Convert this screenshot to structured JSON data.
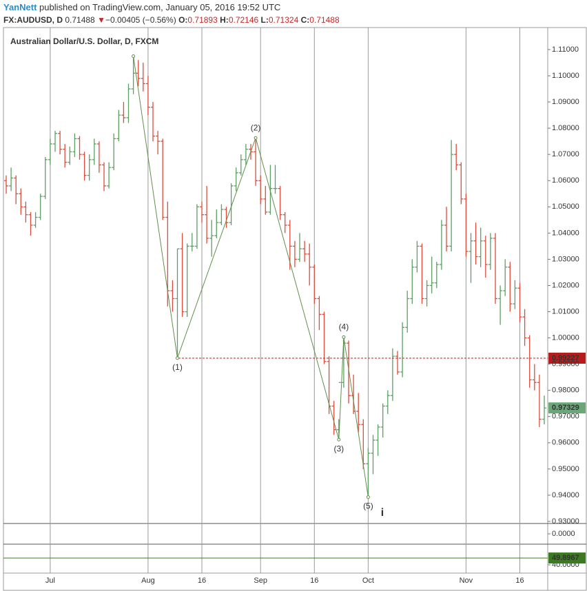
{
  "header": {
    "author": "YanNett",
    "published": "published on TradingView.com, January 05, 2016 19:52 UTC",
    "symbol": "FX:AUDUSD, D",
    "price": "0.71488",
    "direction": "▼",
    "change": "−0.00405 (−0.56%)",
    "open_label": "O:",
    "open": "0.71893",
    "high_label": "H:",
    "high": "0.72146",
    "low_label": "L:",
    "low": "0.71324",
    "close_label": "C:",
    "close": "0.71488"
  },
  "chart_data": {
    "type": "ohlc",
    "up_color": "#5b9f63",
    "down_color": "#de4a3a",
    "grid": "x",
    "ylim": [
      0.9292,
      1.1184
    ],
    "yticks": [
      {
        "value": 0.93,
        "label": "0.93000"
      },
      {
        "value": 0.94,
        "label": "0.94000"
      },
      {
        "value": 0.95,
        "label": "0.95000"
      },
      {
        "value": 0.96,
        "label": "0.96000"
      },
      {
        "value": 0.97,
        "label": "0.97000"
      },
      {
        "value": 0.98,
        "label": "0.98000"
      },
      {
        "value": 0.99,
        "label": "0.99000"
      },
      {
        "value": 1.0,
        "label": "1.00000"
      },
      {
        "value": 1.01,
        "label": "1.01000"
      },
      {
        "value": 1.02,
        "label": "1.02000"
      },
      {
        "value": 1.03,
        "label": "1.03000"
      },
      {
        "value": 1.04,
        "label": "1.04000"
      },
      {
        "value": 1.05,
        "label": "1.05000"
      },
      {
        "value": 1.06,
        "label": "1.06000"
      },
      {
        "value": 1.07,
        "label": "1.07000"
      },
      {
        "value": 1.08,
        "label": "1.08000"
      },
      {
        "value": 1.09,
        "label": "1.09000"
      },
      {
        "value": 1.1,
        "label": "1.10000"
      },
      {
        "value": 1.11,
        "label": "1.11000"
      }
    ],
    "categories": [
      null,
      null,
      null,
      null,
      null,
      null,
      null,
      null,
      null,
      "Jul",
      null,
      null,
      null,
      null,
      null,
      null,
      null,
      null,
      null,
      null,
      null,
      null,
      null,
      null,
      null,
      null,
      null,
      null,
      null,
      "Aug",
      null,
      null,
      null,
      null,
      null,
      null,
      null,
      null,
      null,
      null,
      "16",
      null,
      null,
      null,
      null,
      null,
      null,
      null,
      null,
      null,
      null,
      null,
      "Sep",
      null,
      null,
      null,
      null,
      null,
      null,
      null,
      null,
      null,
      null,
      "16",
      null,
      null,
      null,
      null,
      null,
      null,
      null,
      null,
      null,
      null,
      "Oct",
      null,
      null,
      null,
      null,
      null,
      null,
      null,
      null,
      null,
      null,
      null,
      null,
      null,
      null,
      null,
      null,
      null,
      null,
      null,
      "Nov",
      null,
      null,
      null,
      null,
      null,
      null,
      null,
      null,
      null,
      null,
      "16",
      null,
      null,
      null,
      null,
      null
    ],
    "series": [
      {
        "name": "Australian Dollar/U.S. Dollar, D, FXCM",
        "values": [
          [
            1.06,
            1.062,
            1.055,
            1.058
          ],
          [
            1.058,
            1.065,
            1.056,
            1.061
          ],
          [
            1.061,
            1.062,
            1.051,
            1.055
          ],
          [
            1.055,
            1.057,
            1.047,
            1.05
          ],
          [
            1.05,
            1.052,
            1.044,
            1.047
          ],
          [
            1.047,
            1.048,
            1.039,
            1.043
          ],
          [
            1.043,
            1.048,
            1.042,
            1.046
          ],
          [
            1.046,
            1.055,
            1.045,
            1.054
          ],
          [
            1.054,
            1.069,
            1.053,
            1.068
          ],
          [
            1.068,
            1.076,
            1.066,
            1.074
          ],
          [
            1.074,
            1.079,
            1.071,
            1.078
          ],
          [
            1.078,
            1.079,
            1.07,
            1.072
          ],
          [
            1.072,
            1.074,
            1.065,
            1.067
          ],
          [
            1.067,
            1.073,
            1.066,
            1.071
          ],
          [
            1.071,
            1.078,
            1.069,
            1.076
          ],
          [
            1.076,
            1.077,
            1.068,
            1.07
          ],
          [
            1.07,
            1.071,
            1.06,
            1.062
          ],
          [
            1.062,
            1.07,
            1.06,
            1.068
          ],
          [
            1.068,
            1.076,
            1.066,
            1.074
          ],
          [
            1.074,
            1.075,
            1.063,
            1.066
          ],
          [
            1.066,
            1.067,
            1.056,
            1.058
          ],
          [
            1.058,
            1.067,
            1.057,
            1.065
          ],
          [
            1.065,
            1.078,
            1.064,
            1.076
          ],
          [
            1.076,
            1.087,
            1.075,
            1.085
          ],
          [
            1.085,
            1.09,
            1.082,
            1.084
          ],
          [
            1.084,
            1.097,
            1.082,
            1.095
          ],
          [
            1.095,
            1.1075,
            1.093,
            1.101
          ],
          [
            1.101,
            1.106,
            1.096,
            1.099
          ],
          [
            1.099,
            1.105,
            1.094,
            1.097
          ],
          [
            1.097,
            1.1,
            1.085,
            1.088
          ],
          [
            1.088,
            1.09,
            1.075,
            1.077
          ],
          [
            1.077,
            1.079,
            1.07,
            1.075
          ],
          [
            1.075,
            1.076,
            1.045,
            1.046
          ],
          [
            1.046,
            1.052,
            1.012,
            1.018
          ],
          [
            1.018,
            1.022,
            1.01,
            1.015
          ],
          [
            1.015,
            1.034,
            0.9923,
            1.034
          ],
          [
            1.034,
            1.04,
            1.008,
            1.01
          ],
          [
            1.01,
            1.036,
            1.008,
            1.035
          ],
          [
            1.035,
            1.04,
            1.033,
            1.035
          ],
          [
            1.035,
            1.051,
            1.034,
            1.05
          ],
          [
            1.05,
            1.052,
            1.044,
            1.047
          ],
          [
            1.047,
            1.058,
            1.036,
            1.038
          ],
          [
            1.038,
            1.045,
            1.031,
            1.039
          ],
          [
            1.039,
            1.049,
            1.038,
            1.044
          ],
          [
            1.044,
            1.051,
            1.043,
            1.049
          ],
          [
            1.049,
            1.05,
            1.042,
            1.044
          ],
          [
            1.044,
            1.059,
            1.043,
            1.058
          ],
          [
            1.058,
            1.065,
            1.056,
            1.063
          ],
          [
            1.063,
            1.07,
            1.062,
            1.068
          ],
          [
            1.068,
            1.074,
            1.066,
            1.072
          ],
          [
            1.072,
            1.074,
            1.068,
            1.071
          ],
          [
            1.071,
            1.0763,
            1.058,
            1.06
          ],
          [
            1.06,
            1.062,
            1.051,
            1.053
          ],
          [
            1.053,
            1.058,
            1.047,
            1.048
          ],
          [
            1.048,
            1.066,
            1.047,
            1.057
          ],
          [
            1.057,
            1.066,
            1.055,
            1.057
          ],
          [
            1.057,
            1.058,
            1.045,
            1.047
          ],
          [
            1.047,
            1.048,
            1.04,
            1.043
          ],
          [
            1.043,
            1.045,
            1.026,
            1.035
          ],
          [
            1.035,
            1.037,
            1.027,
            1.03
          ],
          [
            1.03,
            1.04,
            1.029,
            1.034
          ],
          [
            1.034,
            1.037,
            1.029,
            1.032
          ],
          [
            1.032,
            1.036,
            1.02,
            1.027
          ],
          [
            1.027,
            1.028,
            1.013,
            1.015
          ],
          [
            1.015,
            1.016,
            1.003,
            1.009
          ],
          [
            1.009,
            1.01,
            0.99,
            0.991
          ],
          [
            0.991,
            0.993,
            0.971,
            0.974
          ],
          [
            0.974,
            0.976,
            0.963,
            0.965
          ],
          [
            0.965,
            0.969,
            0.9612,
            0.983
          ],
          [
            0.983,
            1.0003,
            0.981,
            0.998
          ],
          [
            0.998,
            0.999,
            0.975,
            0.978
          ],
          [
            0.978,
            0.986,
            0.971,
            0.972
          ],
          [
            0.972,
            0.979,
            0.964,
            0.967
          ],
          [
            0.967,
            0.969,
            0.95,
            0.952
          ],
          [
            0.952,
            0.958,
            0.9393,
            0.956
          ],
          [
            0.956,
            0.963,
            0.948,
            0.961
          ],
          [
            0.961,
            0.967,
            0.955,
            0.966
          ],
          [
            0.966,
            0.975,
            0.962,
            0.974
          ],
          [
            0.974,
            0.98,
            0.971,
            0.978
          ],
          [
            0.978,
            0.996,
            0.976,
            0.993
          ],
          [
            0.993,
            0.995,
            0.986,
            0.987
          ],
          [
            0.987,
            1.006,
            0.985,
            1.004
          ],
          [
            1.004,
            1.018,
            1.002,
            1.015
          ],
          [
            1.015,
            1.03,
            1.013,
            1.027
          ],
          [
            1.027,
            1.037,
            1.025,
            1.035
          ],
          [
            1.035,
            1.036,
            1.013,
            1.015
          ],
          [
            1.015,
            1.022,
            1.012,
            1.02
          ],
          [
            1.02,
            1.031,
            1.017,
            1.021
          ],
          [
            1.021,
            1.029,
            1.019,
            1.028
          ],
          [
            1.028,
            1.045,
            1.026,
            1.043
          ],
          [
            1.043,
            1.05,
            1.033,
            1.035
          ],
          [
            1.035,
            1.0755,
            1.033,
            1.07
          ],
          [
            1.07,
            1.074,
            1.064,
            1.066
          ],
          [
            1.066,
            1.067,
            1.051,
            1.053
          ],
          [
            1.053,
            1.055,
            1.031,
            1.033
          ],
          [
            1.033,
            1.04,
            1.021,
            1.037
          ],
          [
            1.037,
            1.044,
            1.028,
            1.031
          ],
          [
            1.031,
            1.042,
            1.027,
            1.037
          ],
          [
            1.037,
            1.039,
            1.023,
            1.028
          ],
          [
            1.028,
            1.04,
            1.026,
            1.038
          ],
          [
            1.038,
            1.04,
            1.013,
            1.015
          ],
          [
            1.015,
            1.02,
            1.005,
            1.018
          ],
          [
            1.018,
            1.03,
            1.016,
            1.027
          ],
          [
            1.027,
            1.029,
            1.01,
            1.013
          ],
          [
            1.013,
            1.022,
            1.011,
            1.019
          ],
          [
            1.019,
            1.021,
            1.006,
            1.008
          ],
          [
            1.008,
            1.011,
            0.997,
            1.0
          ],
          [
            1.0,
            1.001,
            0.981,
            0.984
          ],
          [
            0.984,
            0.99,
            0.98,
            0.983
          ],
          [
            0.983,
            0.986,
            0.966,
            0.969
          ],
          [
            0.969,
            0.978,
            0.967,
            0.97329
          ]
        ]
      }
    ],
    "pattern": {
      "color": "#5e8f4a",
      "bars": [
        26,
        35,
        51,
        68,
        69,
        74
      ],
      "values": [
        1.1075,
        0.9923,
        1.0763,
        0.9612,
        1.0003,
        0.9393
      ],
      "labels": [
        null,
        "(1)",
        "(2)",
        "(3)",
        "(4)",
        "(5)"
      ]
    },
    "price_line": {
      "value": 0.99227,
      "color": "#b71c1c"
    },
    "last_price": {
      "value": 0.97329,
      "color": "#6aa678"
    },
    "event_marker": "i",
    "panes": [
      {
        "ylim": [
          -1,
          1
        ],
        "yticks": [
          {
            "value": 0,
            "label": "0.0000"
          }
        ]
      },
      {
        "ylim": [
          28,
          70
        ],
        "yticks": [
          {
            "value": 40,
            "label": "40.0000"
          }
        ],
        "level": 49.8967,
        "color": "#3c7a22"
      }
    ]
  }
}
